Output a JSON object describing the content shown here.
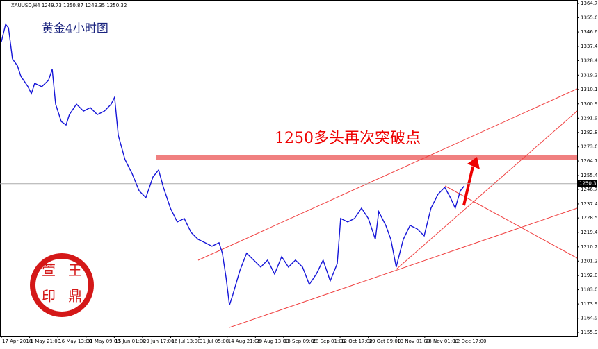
{
  "chart_data": {
    "type": "line",
    "title": "XAUUSD,H4  1249.73 1250.87 1249.35 1250.32",
    "subtitle": "黄金4小时图",
    "annotation": "1250多头再次突破点",
    "seal": [
      "萱",
      "王",
      "印",
      "鼎"
    ],
    "x": [
      0,
      1.5,
      2.5,
      3.9,
      5.7,
      6.9,
      9.4,
      10.6,
      11.8,
      14.3,
      16.7,
      18,
      19.2,
      21.2,
      22.9,
      24.1,
      26.6,
      29.1,
      31.5,
      34,
      36.5,
      38.9,
      40.1,
      41.4,
      43.8,
      46.3,
      48.8,
      51.2,
      53.7,
      55.7,
      57.4,
      59.9,
      62.3,
      64.8,
      67.2,
      69.7,
      72.2,
      74.6,
      77.1,
      78.3,
      79.6,
      80.8,
      82,
      84.5,
      86.9,
      89.4,
      91.9,
      94.3,
      96.8,
      99.3,
      101.7,
      104.2,
      106.7,
      109.1,
      111.6,
      114,
      116.5,
      119,
      120.2,
      122.7,
      125.1,
      127.6,
      130,
      132.5,
      133.7,
      136.2,
      138,
      139.9,
      142.4,
      144.8,
      147.3,
      149.8,
      152.2,
      154.7,
      157.1,
      159.1,
      160.8,
      162.6,
      164
    ],
    "series": [
      {
        "name": "XAUUSD,H4",
        "color": "#1515d8",
        "values": [
          1340.5,
          1351.5,
          1349.3,
          1329.5,
          1325,
          1318.5,
          1311.9,
          1307.5,
          1314,
          1311.9,
          1316,
          1322.9,
          1300.8,
          1289.8,
          1287.6,
          1294.2,
          1300.8,
          1296.4,
          1298.6,
          1294.2,
          1296.4,
          1300.8,
          1305.2,
          1281,
          1265.6,
          1256.8,
          1245.8,
          1241.4,
          1254.6,
          1259,
          1248,
          1234.8,
          1226,
          1228.2,
          1219.4,
          1215,
          1212.8,
          1210.6,
          1212.8,
          1206.2,
          1190.8,
          1173.2,
          1179.8,
          1195.2,
          1206.2,
          1201.8,
          1197.4,
          1201.8,
          1193,
          1204,
          1197.4,
          1201.8,
          1197.4,
          1186.4,
          1193,
          1201.8,
          1188.6,
          1199.6,
          1228.2,
          1226,
          1228.2,
          1234.8,
          1228.2,
          1215,
          1232.6,
          1223.8,
          1215,
          1197.4,
          1215,
          1223.8,
          1221.6,
          1217.2,
          1234.8,
          1243.6,
          1248,
          1241.4,
          1234.8,
          1245.8,
          1248.9
        ]
      }
    ],
    "price_line": {
      "value": 1250.32,
      "label": "1250.32"
    },
    "xlim": [
      -0.5,
      204
    ],
    "xticks": [
      {
        "value": 0,
        "label": "17 Apr 2018"
      },
      {
        "value": 10,
        "label": "1 May 21:00"
      },
      {
        "value": 20,
        "label": "16 May 13:00"
      },
      {
        "value": 30,
        "label": "31 May 09:00"
      },
      {
        "value": 40,
        "label": "15 Jun 01:00"
      },
      {
        "value": 50,
        "label": "29 Jun 17:00"
      },
      {
        "value": 60,
        "label": "16 Jul 13:00"
      },
      {
        "value": 70,
        "label": "31 Jul 05:00"
      },
      {
        "value": 80,
        "label": "14 Aug 21:00"
      },
      {
        "value": 90,
        "label": "29 Aug 13:00"
      },
      {
        "value": 100,
        "label": "13 Sep 09:00"
      },
      {
        "value": 110,
        "label": "28 Sep 01:00"
      },
      {
        "value": 120,
        "label": "12 Oct 17:00"
      },
      {
        "value": 130,
        "label": "29 Oct 09:00"
      },
      {
        "value": 140,
        "label": "13 Nov 01:00"
      },
      {
        "value": 150,
        "label": "28 Nov 01:00"
      },
      {
        "value": 160,
        "label": "12 Dec 17:00"
      }
    ],
    "ylim": [
      1153.75,
      1366.9
    ],
    "yticks": [
      {
        "value": 1364.7,
        "label": "1364.70"
      },
      1355.65,
      {
        "value": 1346.6,
        "label": "1346.60"
      },
      1337.45,
      {
        "value": 1328.4,
        "label": "1328.40"
      },
      {
        "value": 1319.2,
        "label": "1319.20"
      },
      1310.15,
      1300.95,
      {
        "value": 1291.9,
        "label": "1291.90"
      },
      1282.85,
      1273.65,
      {
        "value": 1264.7,
        "label": "1264.70"
      },
      1255.45,
      {
        "value": 1246.7,
        "label": "1246.70"
      },
      1237.45,
      1228.55,
      1219.45,
      {
        "value": 1210.2,
        "label": "1210.20"
      },
      {
        "value": 1201.2,
        "label": "1201.20"
      },
      {
        "value": 1192,
        "label": "1192.00"
      },
      {
        "value": 1183,
        "label": "1183.00"
      },
      1173.95,
      {
        "value": 1164.9,
        "label": "1164.90"
      },
      1155.95
    ]
  }
}
